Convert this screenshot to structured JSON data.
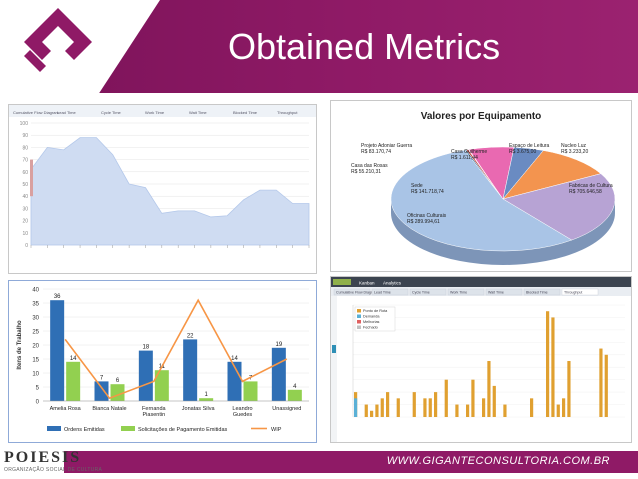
{
  "slide": {
    "title": "Obtained Metrics"
  },
  "colors": {
    "brand": "#8f1a66",
    "bar_blue": "#2f6fb5",
    "bar_green": "#92d050",
    "wip_orange": "#f79646",
    "gold": "#e0a030"
  },
  "footer": {
    "url": "WWW.GIGANTECONSULTORIA.COM.BR",
    "brand": "POIESIS",
    "brand_sub": "ORGANIZAÇÃO SOCIAL DE CULTURA"
  },
  "cfd": {
    "tabs": [
      "Cumulative Flow Diagram",
      "Lead Time",
      "Cycle Time",
      "Work Time",
      "Wait Time",
      "Blocked Time",
      "Throughput"
    ]
  },
  "chart_data": [
    {
      "type": "area",
      "title": "Cumulative Flow Diagram",
      "yticks": [
        "100",
        "90",
        "80",
        "70",
        "60",
        "50",
        "40",
        "30",
        "20",
        "10",
        "0"
      ],
      "ylim": [
        0,
        100
      ],
      "values": [
        62,
        80,
        78,
        88,
        88,
        74,
        50,
        47,
        26,
        28,
        28,
        23,
        24,
        37,
        45,
        45,
        34,
        34
      ]
    },
    {
      "type": "pie",
      "title": "Valores por Equipamento",
      "slices": [
        {
          "label": "Fabricas de Cultura",
          "value_label": "R$ 705.646,58",
          "value": 705646.58,
          "color": "#a9c4e6"
        },
        {
          "label": "Oficinas Culturais",
          "value_label": "R$ 289.994,61",
          "value": 289994.61,
          "color": "#b7a3d4"
        },
        {
          "label": "Sede",
          "value_label": "R$ 141.718,74",
          "value": 141718.74,
          "color": "#f3944f"
        },
        {
          "label": "Casa das Rosas",
          "value_label": "R$ 55.210,31",
          "value": 55210.31,
          "color": "#6a8bc2"
        },
        {
          "label": "Projeto Adoniar Guerra",
          "value_label": "R$ 83.170,74",
          "value": 83170.74,
          "color": "#e969b1"
        },
        {
          "label": "Casa Guilherme",
          "value_label": "R$ 1.611,44",
          "value": 1611.44,
          "color": "#f5b7d5"
        },
        {
          "label": "Espaço de Leitura",
          "value_label": "R$ 3.675,00",
          "value": 3675.0,
          "color": "#c4443f"
        },
        {
          "label": "Nucleo Luz",
          "value_label": "R$ 3.233,20",
          "value": 3233.2,
          "color": "#3b7a9e"
        }
      ]
    },
    {
      "type": "bar",
      "ylabel": "Itens de Trabalho",
      "yticks": [
        "40",
        "35",
        "30",
        "25",
        "20",
        "15",
        "10",
        "5",
        "0"
      ],
      "ylim": [
        0,
        40
      ],
      "categories": [
        "Amelia Rosa",
        "Bianca Natale",
        "Fernanda Piasentin",
        "Jonatas Silva",
        "Leandro Guedes",
        "Unassigned"
      ],
      "series": [
        {
          "name": "Ordens Emitidas",
          "values": [
            36,
            7,
            18,
            22,
            14,
            19
          ]
        },
        {
          "name": "Solicitações de Pagamento Emitidas",
          "values": [
            14,
            6,
            11,
            1,
            7,
            4
          ]
        },
        {
          "name": "WIP",
          "values": [
            22,
            1,
            7,
            36,
            7,
            15
          ]
        }
      ],
      "labels_blue": [
        "36",
        "7",
        "18",
        "22",
        "14",
        "19"
      ],
      "labels_green": [
        "14",
        "6",
        "11",
        "1",
        "7",
        "4"
      ]
    },
    {
      "type": "bar",
      "title": "Throughput",
      "values": [
        4,
        0,
        2,
        1,
        2,
        3,
        4,
        0,
        3,
        0,
        0,
        4,
        0,
        3,
        3,
        4,
        0,
        6,
        0,
        2,
        0,
        2,
        6,
        0,
        3,
        9,
        5,
        0,
        2,
        0,
        0,
        0,
        0,
        3,
        0,
        0,
        17,
        16,
        2,
        3,
        9,
        0,
        0,
        0,
        0,
        0,
        11,
        10,
        0,
        0,
        0
      ]
    }
  ],
  "kanban": {
    "tabs": [
      "Kanban",
      "Analytics"
    ],
    "subtabs": [
      "Cumulative Flow Diagram",
      "Lead Time",
      "Cycle Time",
      "Work Time",
      "Wait Time",
      "Blocked Time",
      "Throughput"
    ],
    "legend": [
      "Ponto de Rota",
      "Demanda",
      "Melhorias",
      "Fechado"
    ]
  }
}
